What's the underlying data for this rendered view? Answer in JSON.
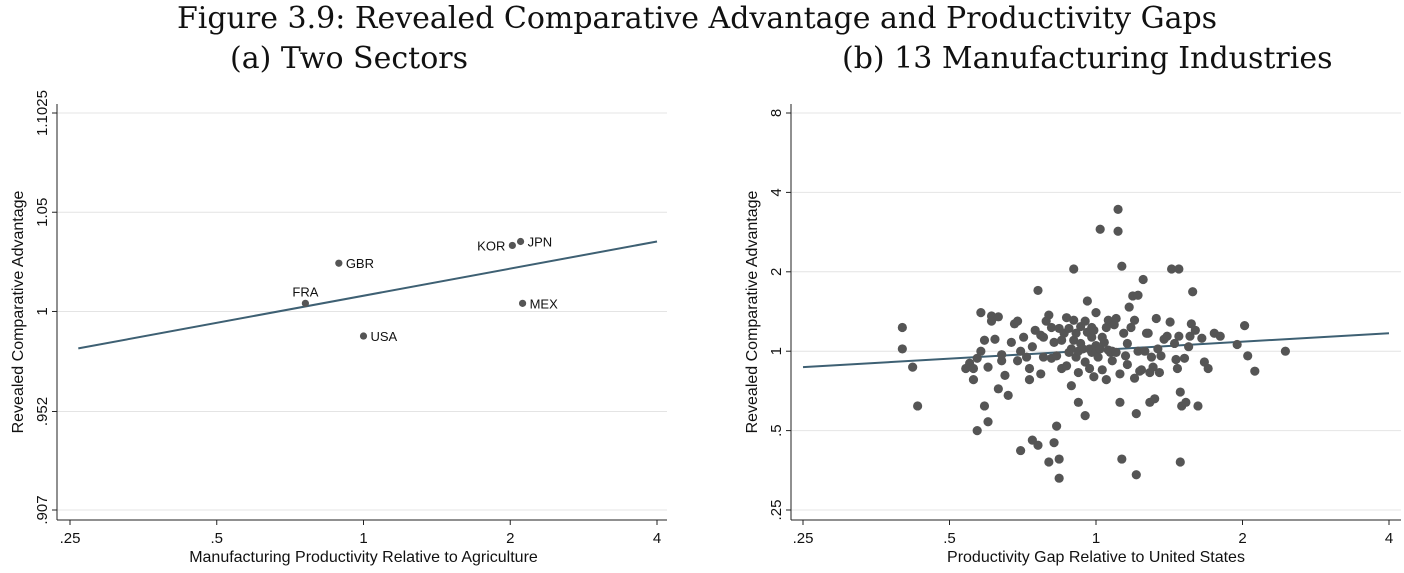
{
  "figure": {
    "title": "Figure 3.9: Revealed Comparative Advantage and Productivity Gaps"
  },
  "chart_data": [
    {
      "type": "scatter",
      "title": "(a) Two Sectors",
      "xlabel": "Manufacturing Productivity Relative to Agriculture",
      "ylabel": "Revealed Comparative Advantage",
      "x_scale": "log",
      "y_scale": "log",
      "xlim": [
        0.25,
        4
      ],
      "ylim": [
        0.907,
        1.1025
      ],
      "x_ticks": [
        {
          "value": 0.25,
          "label": ".25"
        },
        {
          "value": 0.5,
          "label": ".5"
        },
        {
          "value": 1,
          "label": "1"
        },
        {
          "value": 2,
          "label": "2"
        },
        {
          "value": 4,
          "label": "4"
        }
      ],
      "y_ticks": [
        {
          "value": 0.907,
          "label": ".907"
        },
        {
          "value": 0.952,
          "label": ".952"
        },
        {
          "value": 1,
          "label": "1"
        },
        {
          "value": 1.05,
          "label": "1.05"
        },
        {
          "value": 1.1025,
          "label": "1.1025"
        }
      ],
      "grid": true,
      "points": [
        {
          "label": "FRA",
          "x": 0.76,
          "y": 1.004,
          "label_pos": "above"
        },
        {
          "label": "GBR",
          "x": 0.89,
          "y": 1.024,
          "label_pos": "right"
        },
        {
          "label": "USA",
          "x": 1.0,
          "y": 0.988,
          "label_pos": "right"
        },
        {
          "label": "KOR",
          "x": 2.02,
          "y": 1.033,
          "label_pos": "left"
        },
        {
          "label": "JPN",
          "x": 2.1,
          "y": 1.035,
          "label_pos": "right"
        },
        {
          "label": "MEX",
          "x": 2.12,
          "y": 1.004,
          "label_pos": "right"
        }
      ],
      "fit_line": {
        "x": [
          0.26,
          4
        ],
        "y": [
          0.982,
          1.035
        ]
      }
    },
    {
      "type": "scatter",
      "title": "(b) 13 Manufacturing Industries",
      "xlabel": "Productivity Gap Relative to United States",
      "ylabel": "Revealed Comparative Advantage",
      "x_scale": "log",
      "y_scale": "log",
      "xlim": [
        0.25,
        4
      ],
      "ylim": [
        0.25,
        8
      ],
      "x_ticks": [
        {
          "value": 0.25,
          "label": ".25"
        },
        {
          "value": 0.5,
          "label": ".5"
        },
        {
          "value": 1,
          "label": "1"
        },
        {
          "value": 2,
          "label": "2"
        },
        {
          "value": 4,
          "label": "4"
        }
      ],
      "y_ticks": [
        {
          "value": 0.25,
          "label": ".25"
        },
        {
          "value": 0.5,
          "label": ".5"
        },
        {
          "value": 1,
          "label": "1"
        },
        {
          "value": 2,
          "label": "2"
        },
        {
          "value": 4,
          "label": "4"
        },
        {
          "value": 8,
          "label": "8"
        }
      ],
      "grid": true,
      "points": [
        [
          0.4,
          1.23
        ],
        [
          0.4,
          1.02
        ],
        [
          0.42,
          0.87
        ],
        [
          0.43,
          0.62
        ],
        [
          0.54,
          0.86
        ],
        [
          0.55,
          0.9
        ],
        [
          0.56,
          0.78
        ],
        [
          0.56,
          0.86
        ],
        [
          0.57,
          0.94
        ],
        [
          0.57,
          0.5
        ],
        [
          0.58,
          1.4
        ],
        [
          0.58,
          1.0
        ],
        [
          0.59,
          0.62
        ],
        [
          0.59,
          1.1
        ],
        [
          0.6,
          0.54
        ],
        [
          0.6,
          0.87
        ],
        [
          0.61,
          1.3
        ],
        [
          0.61,
          1.36
        ],
        [
          0.62,
          1.11
        ],
        [
          0.63,
          0.72
        ],
        [
          0.63,
          1.35
        ],
        [
          0.64,
          0.92
        ],
        [
          0.64,
          0.97
        ],
        [
          0.65,
          0.81
        ],
        [
          0.66,
          0.68
        ],
        [
          0.67,
          1.08
        ],
        [
          0.68,
          1.27
        ],
        [
          0.69,
          1.3
        ],
        [
          0.69,
          0.92
        ],
        [
          0.7,
          1.0
        ],
        [
          0.7,
          0.42
        ],
        [
          0.71,
          1.13
        ],
        [
          0.72,
          0.95
        ],
        [
          0.73,
          0.86
        ],
        [
          0.73,
          0.78
        ],
        [
          0.74,
          1.04
        ],
        [
          0.74,
          0.46
        ],
        [
          0.75,
          1.2
        ],
        [
          0.76,
          1.7
        ],
        [
          0.76,
          0.44
        ],
        [
          0.77,
          1.15
        ],
        [
          0.77,
          0.82
        ],
        [
          0.78,
          0.95
        ],
        [
          0.78,
          1.13
        ],
        [
          0.79,
          1.3
        ],
        [
          0.8,
          1.37
        ],
        [
          0.8,
          0.38
        ],
        [
          0.81,
          0.94
        ],
        [
          0.81,
          1.23
        ],
        [
          0.82,
          1.08
        ],
        [
          0.82,
          0.45
        ],
        [
          0.83,
          0.52
        ],
        [
          0.83,
          0.96
        ],
        [
          0.84,
          1.22
        ],
        [
          0.84,
          0.39
        ],
        [
          0.84,
          0.33
        ],
        [
          0.85,
          0.86
        ],
        [
          0.85,
          1.1
        ],
        [
          0.86,
          1.17
        ],
        [
          0.87,
          1.34
        ],
        [
          0.87,
          0.88
        ],
        [
          0.88,
          0.99
        ],
        [
          0.88,
          1.22
        ],
        [
          0.89,
          1.02
        ],
        [
          0.89,
          0.74
        ],
        [
          0.9,
          1.31
        ],
        [
          0.9,
          1.1
        ],
        [
          0.9,
          2.05
        ],
        [
          0.91,
          1.17
        ],
        [
          0.91,
          0.95
        ],
        [
          0.92,
          0.83
        ],
        [
          0.92,
          1.0
        ],
        [
          0.92,
          0.64
        ],
        [
          0.93,
          1.07
        ],
        [
          0.93,
          1.24
        ],
        [
          0.94,
          1.02
        ],
        [
          0.95,
          1.3
        ],
        [
          0.95,
          0.91
        ],
        [
          0.95,
          0.57
        ],
        [
          0.96,
          1.55
        ],
        [
          0.96,
          1.18
        ],
        [
          0.97,
          0.86
        ],
        [
          0.97,
          1.02
        ],
        [
          0.98,
          1.23
        ],
        [
          0.98,
          0.99
        ],
        [
          0.98,
          1.13
        ],
        [
          0.99,
          1.2
        ],
        [
          0.99,
          0.8
        ],
        [
          1.0,
          1.0
        ],
        [
          1.0,
          1.05
        ],
        [
          1.0,
          1.4
        ],
        [
          1.01,
          0.95
        ],
        [
          1.02,
          2.9
        ],
        [
          1.02,
          1.02
        ],
        [
          1.03,
          1.13
        ],
        [
          1.03,
          0.85
        ],
        [
          1.04,
          1.08
        ],
        [
          1.05,
          0.78
        ],
        [
          1.05,
          1.23
        ],
        [
          1.06,
          1.31
        ],
        [
          1.06,
          1.01
        ],
        [
          1.07,
          0.99
        ],
        [
          1.08,
          1.0
        ],
        [
          1.08,
          0.92
        ],
        [
          1.09,
          1.26
        ],
        [
          1.1,
          1.33
        ],
        [
          1.1,
          0.99
        ],
        [
          1.11,
          3.45
        ],
        [
          1.11,
          2.85
        ],
        [
          1.12,
          0.82
        ],
        [
          1.12,
          0.64
        ],
        [
          1.13,
          0.39
        ],
        [
          1.13,
          2.1
        ],
        [
          1.14,
          1.17
        ],
        [
          1.15,
          0.96
        ],
        [
          1.16,
          0.89
        ],
        [
          1.16,
          1.07
        ],
        [
          1.17,
          1.47
        ],
        [
          1.18,
          1.23
        ],
        [
          1.19,
          1.62
        ],
        [
          1.2,
          1.31
        ],
        [
          1.2,
          0.79
        ],
        [
          1.21,
          0.58
        ],
        [
          1.21,
          0.34
        ],
        [
          1.22,
          1.0
        ],
        [
          1.22,
          1.63
        ],
        [
          1.23,
          0.84
        ],
        [
          1.24,
          0.85
        ],
        [
          1.25,
          1.87
        ],
        [
          1.26,
          1.0
        ],
        [
          1.27,
          1.17
        ],
        [
          1.28,
          1.17
        ],
        [
          1.29,
          0.64
        ],
        [
          1.29,
          0.83
        ],
        [
          1.3,
          0.95
        ],
        [
          1.31,
          0.87
        ],
        [
          1.32,
          0.66
        ],
        [
          1.33,
          1.33
        ],
        [
          1.34,
          1.02
        ],
        [
          1.35,
          0.83
        ],
        [
          1.36,
          0.96
        ],
        [
          1.38,
          1.11
        ],
        [
          1.4,
          1.14
        ],
        [
          1.42,
          1.29
        ],
        [
          1.43,
          2.05
        ],
        [
          1.45,
          1.07
        ],
        [
          1.46,
          0.93
        ],
        [
          1.47,
          0.86
        ],
        [
          1.48,
          1.14
        ],
        [
          1.48,
          2.05
        ],
        [
          1.49,
          0.7
        ],
        [
          1.49,
          0.38
        ],
        [
          1.5,
          0.62
        ],
        [
          1.52,
          0.94
        ],
        [
          1.53,
          0.64
        ],
        [
          1.55,
          1.04
        ],
        [
          1.56,
          1.14
        ],
        [
          1.57,
          1.27
        ],
        [
          1.58,
          1.68
        ],
        [
          1.6,
          1.2
        ],
        [
          1.62,
          0.62
        ],
        [
          1.65,
          1.12
        ],
        [
          1.67,
          0.91
        ],
        [
          1.7,
          0.86
        ],
        [
          1.75,
          1.17
        ],
        [
          1.8,
          1.14
        ],
        [
          1.95,
          1.06
        ],
        [
          2.02,
          1.25
        ],
        [
          2.05,
          0.96
        ],
        [
          2.12,
          0.84
        ],
        [
          2.45,
          1.0
        ]
      ],
      "fit_line": {
        "x": [
          0.25,
          4
        ],
        "y": [
          0.87,
          1.17
        ]
      }
    }
  ]
}
